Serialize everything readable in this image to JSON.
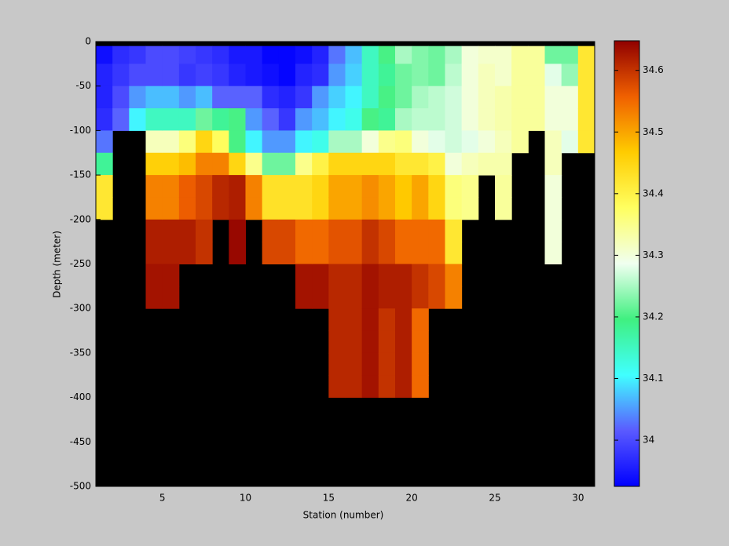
{
  "chart_data": {
    "type": "heatmap",
    "xlabel": "Station (number)",
    "ylabel": "Depth (meter)",
    "xlim": [
      1,
      31
    ],
    "ylim": [
      -500,
      0
    ],
    "xticks": [
      5,
      10,
      15,
      20,
      25,
      30
    ],
    "yticks": [
      -500,
      -450,
      -400,
      -350,
      -300,
      -250,
      -200,
      -150,
      -100,
      -50,
      0
    ],
    "x": [
      1,
      2,
      3,
      4,
      5,
      6,
      7,
      8,
      9,
      10,
      11,
      12,
      13,
      14,
      15,
      16,
      17,
      18,
      19,
      20,
      21,
      22,
      23,
      24,
      25,
      26,
      27,
      28,
      29,
      30,
      31
    ],
    "y": [
      -5,
      -25,
      -50,
      -75,
      -100,
      -125,
      -150,
      -175,
      -200,
      -225,
      -250,
      -275,
      -300,
      -325,
      -350,
      -375,
      -400
    ],
    "z": [
      [
        33.94,
        33.96,
        33.96,
        33.97,
        34.03,
        34.18,
        34.42,
        34.42,
        null,
        null,
        null,
        null,
        null,
        null,
        null,
        null
      ],
      [
        33.97,
        33.98,
        34.0,
        34.02,
        null,
        null,
        null,
        null,
        null,
        null,
        null,
        null,
        null,
        null,
        null,
        null
      ],
      [
        33.98,
        34.0,
        34.05,
        34.1,
        null,
        null,
        null,
        null,
        null,
        null,
        null,
        null,
        null,
        null,
        null,
        null
      ],
      [
        34.0,
        34.0,
        34.07,
        34.15,
        34.32,
        34.46,
        34.53,
        34.53,
        34.62,
        34.62,
        34.63,
        34.63,
        null,
        null,
        null,
        null
      ],
      [
        34.0,
        34.0,
        34.07,
        34.15,
        34.32,
        34.46,
        34.53,
        34.53,
        34.62,
        34.62,
        34.63,
        34.63,
        null,
        null,
        null,
        null
      ],
      [
        33.99,
        33.98,
        34.05,
        34.15,
        34.36,
        34.48,
        34.56,
        34.56,
        34.62,
        34.62,
        null,
        null,
        null,
        null,
        null,
        null
      ],
      [
        33.98,
        33.99,
        34.07,
        34.22,
        34.45,
        34.53,
        34.58,
        34.58,
        34.6,
        34.6,
        null,
        null,
        null,
        null,
        null,
        null
      ],
      [
        33.97,
        33.98,
        34.02,
        34.18,
        34.38,
        34.53,
        34.61,
        34.61,
        null,
        null,
        null,
        null,
        null,
        null,
        null,
        null
      ],
      [
        33.95,
        33.96,
        34.02,
        34.2,
        34.2,
        34.45,
        34.62,
        34.62,
        34.64,
        34.64,
        null,
        null,
        null,
        null,
        null,
        null
      ],
      [
        33.95,
        33.95,
        34.02,
        34.05,
        34.1,
        34.35,
        34.53,
        34.53,
        null,
        null,
        null,
        null,
        null,
        null,
        null,
        null
      ],
      [
        33.93,
        33.94,
        33.97,
        34.02,
        34.05,
        34.22,
        34.43,
        34.43,
        34.58,
        34.58,
        null,
        null,
        null,
        null,
        null,
        null
      ],
      [
        33.93,
        33.93,
        33.96,
        33.98,
        34.05,
        34.22,
        34.43,
        34.43,
        34.58,
        34.58,
        null,
        null,
        null,
        null,
        null,
        null
      ],
      [
        33.94,
        33.96,
        33.98,
        34.05,
        34.1,
        34.35,
        34.43,
        34.43,
        34.55,
        34.55,
        34.63,
        34.63,
        null,
        null,
        null,
        null
      ],
      [
        33.96,
        33.97,
        34.05,
        34.07,
        34.12,
        34.4,
        34.45,
        34.45,
        34.55,
        34.55,
        34.63,
        34.63,
        null,
        null,
        null,
        null
      ],
      [
        34.03,
        34.05,
        34.08,
        34.1,
        34.25,
        34.45,
        34.5,
        34.5,
        34.57,
        34.57,
        34.61,
        34.61,
        34.61,
        34.61,
        34.61,
        34.61
      ],
      [
        34.07,
        34.08,
        34.1,
        34.12,
        34.25,
        34.45,
        34.5,
        34.5,
        34.57,
        34.57,
        34.61,
        34.61,
        34.61,
        34.61,
        34.61,
        34.61
      ],
      [
        34.15,
        34.15,
        34.15,
        34.2,
        34.3,
        34.45,
        34.52,
        34.52,
        34.6,
        34.6,
        34.63,
        34.63,
        34.63,
        34.63,
        34.63,
        34.63
      ],
      [
        34.2,
        34.18,
        34.2,
        34.18,
        34.35,
        34.45,
        34.5,
        34.5,
        34.58,
        34.58,
        34.62,
        34.62,
        34.6,
        34.6,
        34.6,
        34.6
      ],
      [
        34.25,
        34.22,
        34.22,
        34.25,
        34.36,
        34.42,
        34.47,
        34.47,
        34.55,
        34.55,
        34.62,
        34.62,
        34.62,
        34.62,
        34.62,
        34.62
      ],
      [
        34.23,
        34.23,
        34.25,
        34.26,
        34.3,
        34.42,
        34.5,
        34.5,
        34.55,
        34.55,
        34.6,
        34.6,
        34.55,
        34.55,
        34.55,
        34.55
      ],
      [
        34.22,
        34.22,
        34.26,
        34.26,
        34.28,
        34.4,
        34.45,
        34.45,
        34.55,
        34.55,
        34.58,
        34.58,
        null,
        null,
        null,
        null
      ],
      [
        34.25,
        34.26,
        34.27,
        34.27,
        34.27,
        34.3,
        34.36,
        34.36,
        34.42,
        34.42,
        34.53,
        34.53,
        null,
        null,
        null,
        null
      ],
      [
        34.3,
        34.3,
        34.3,
        34.3,
        34.28,
        34.32,
        34.35,
        34.35,
        null,
        null,
        null,
        null,
        null,
        null,
        null,
        null
      ],
      [
        34.31,
        34.32,
        34.32,
        34.32,
        34.3,
        34.33,
        null,
        null,
        null,
        null,
        null,
        null,
        null,
        null,
        null,
        null
      ],
      [
        34.31,
        34.31,
        34.33,
        34.33,
        34.32,
        34.33,
        34.34,
        34.34,
        null,
        null,
        null,
        null,
        null,
        null,
        null,
        null
      ],
      [
        34.34,
        34.34,
        34.34,
        34.34,
        34.34,
        null,
        null,
        null,
        null,
        null,
        null,
        null,
        null,
        null,
        null,
        null
      ],
      [
        34.34,
        34.34,
        34.34,
        34.34,
        null,
        null,
        null,
        null,
        null,
        null,
        null,
        null,
        null,
        null,
        null,
        null
      ],
      [
        34.22,
        34.28,
        34.3,
        34.3,
        34.32,
        34.32,
        34.3,
        34.3,
        34.3,
        34.3,
        null,
        null,
        null,
        null,
        null,
        null
      ],
      [
        34.22,
        34.24,
        34.3,
        34.3,
        34.28,
        null,
        null,
        null,
        null,
        null,
        null,
        null,
        null,
        null,
        null,
        null
      ],
      [
        34.42,
        34.42,
        34.42,
        34.42,
        34.42,
        null,
        null,
        null,
        null,
        null,
        null,
        null,
        null,
        null,
        null,
        null
      ]
    ],
    "background": "#000000",
    "colormap": [
      "#0000ff",
      "#5a5aff",
      "#40ffff",
      "#40f080",
      "#f0fff0",
      "#ffff60",
      "#ffcc00",
      "#f06000",
      "#900000"
    ],
    "clim": [
      33.925,
      34.648
    ],
    "colorbar_ticks": [
      34,
      34.1,
      34.2,
      34.3,
      34.4,
      34.5,
      34.6
    ]
  }
}
